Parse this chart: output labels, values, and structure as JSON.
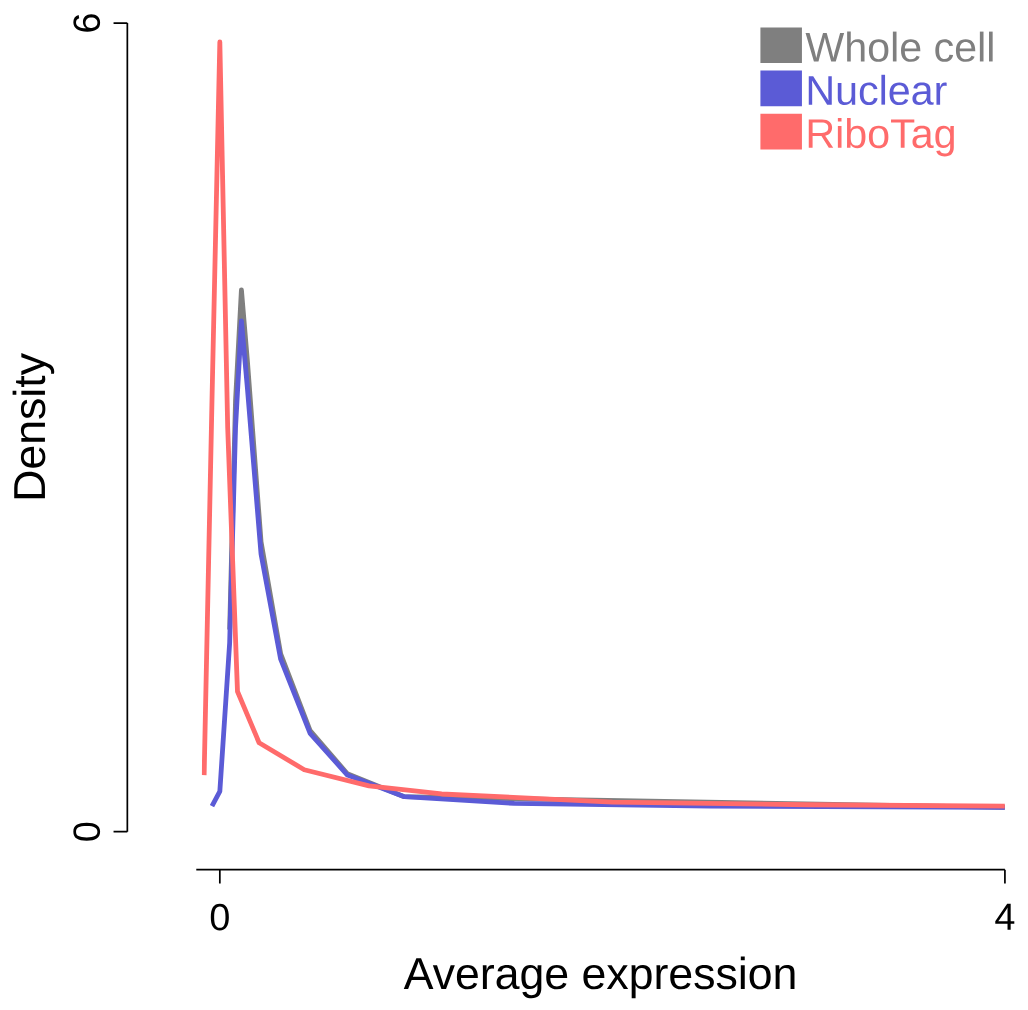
{
  "chart_data": {
    "type": "line",
    "xlabel": "Average expression",
    "ylabel": "Density",
    "xlim": [
      -0.12,
      4
    ],
    "ylim": [
      0,
      6
    ],
    "xticks": [
      0,
      4
    ],
    "yticks": [
      0,
      6
    ],
    "grid": false,
    "legend": "top right",
    "marker": "none",
    "line_style": "solid",
    "series": [
      {
        "name": "Whole cell",
        "color": "#7f7f7f",
        "x": [
          0.05,
          0.08,
          0.11,
          0.14,
          0.21,
          0.31,
          0.46,
          0.65,
          0.94,
          4.0
        ],
        "values": [
          1.5,
          3.2,
          4.02,
          3.5,
          2.15,
          1.32,
          0.75,
          0.43,
          0.26,
          0.18
        ]
      },
      {
        "name": "Nuclear",
        "color": "#5b5bd6",
        "x": [
          -0.04,
          0.0,
          0.05,
          0.08,
          0.11,
          0.14,
          0.21,
          0.31,
          0.46,
          0.65,
          0.94,
          1.5,
          2.5,
          4.0
        ],
        "values": [
          0.19,
          0.3,
          1.4,
          3.0,
          3.79,
          3.3,
          2.06,
          1.28,
          0.73,
          0.42,
          0.26,
          0.21,
          0.19,
          0.18
        ]
      },
      {
        "name": "RiboTag",
        "color": "#ff6b6b",
        "x": [
          -0.08,
          -0.04,
          0.0,
          0.04,
          0.09,
          0.2,
          0.43,
          0.76,
          1.13,
          2.0,
          3.0,
          4.0
        ],
        "values": [
          0.42,
          3.2,
          5.86,
          3.0,
          1.04,
          0.66,
          0.46,
          0.34,
          0.28,
          0.22,
          0.2,
          0.19
        ]
      }
    ]
  }
}
